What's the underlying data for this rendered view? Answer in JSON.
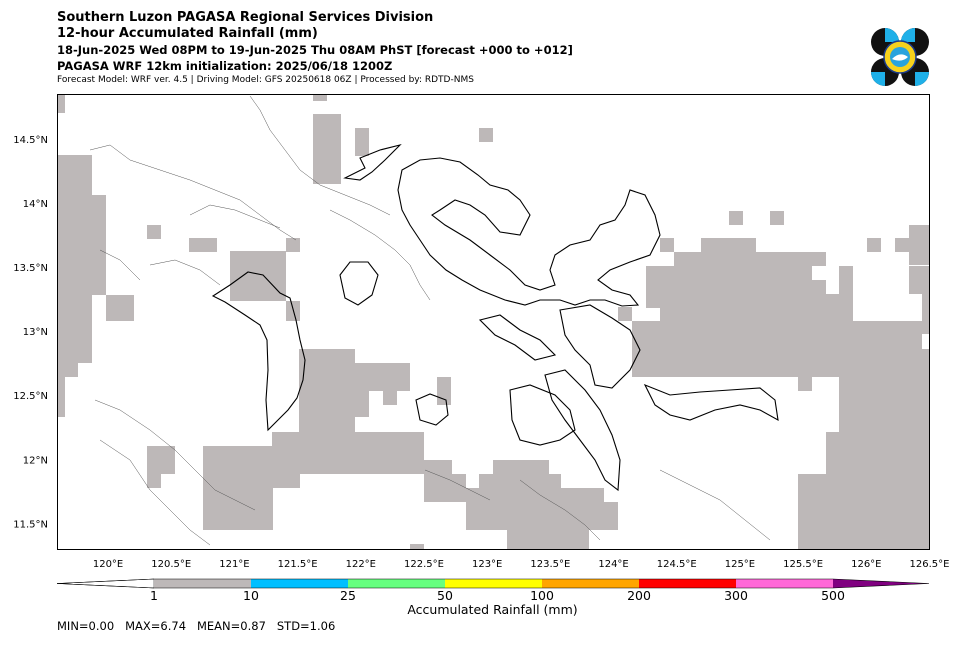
{
  "header": {
    "line1": "Southern Luzon PAGASA Regional Services Division",
    "line2": "12-hour Accumulated Rainfall (mm)",
    "line3": "18-Jun-2025 Wed 08PM to 19-Jun-2025 Thu 08AM PhST [forecast +000 to +012]",
    "line4": "PAGASA WRF 12km initialization: 2025/06/18 1200Z",
    "line5": "Forecast Model: WRF ver. 4.5 | Driving Model: GFS 20250618 06Z | Processed by: RDTD-NMS"
  },
  "map": {
    "lon_range": [
      119.6,
      126.5
    ],
    "lat_range": [
      11.3,
      14.85
    ],
    "lon_ticks": [
      "120°E",
      "120.5°E",
      "121°E",
      "121.5°E",
      "122°E",
      "122.5°E",
      "123°E",
      "123.5°E",
      "124°E",
      "124.5°E",
      "125°E",
      "125.5°E",
      "126°E",
      "126.5°E"
    ],
    "lat_ticks": [
      "14.5°N",
      "14°N",
      "13.5°N",
      "13°N",
      "12.5°N",
      "12°N",
      "11.5°N"
    ],
    "rain_shade_color": "#bdb8b8",
    "coast_color": "#000000"
  },
  "colorbar": {
    "title": "Accumulated Rainfall (mm)",
    "labels": [
      "1",
      "10",
      "25",
      "50",
      "100",
      "200",
      "300",
      "500"
    ],
    "colors": [
      "#ffffff",
      "#bdb8b8",
      "#00bfff",
      "#66ff7f",
      "#ffff00",
      "#ffa500",
      "#ff0000",
      "#ff69d8",
      "#800080"
    ]
  },
  "stats": {
    "text": "MIN=0.00   MAX=6.74   MEAN=0.87   STD=1.06"
  },
  "logo": {
    "name": "PAGASA seal"
  }
}
